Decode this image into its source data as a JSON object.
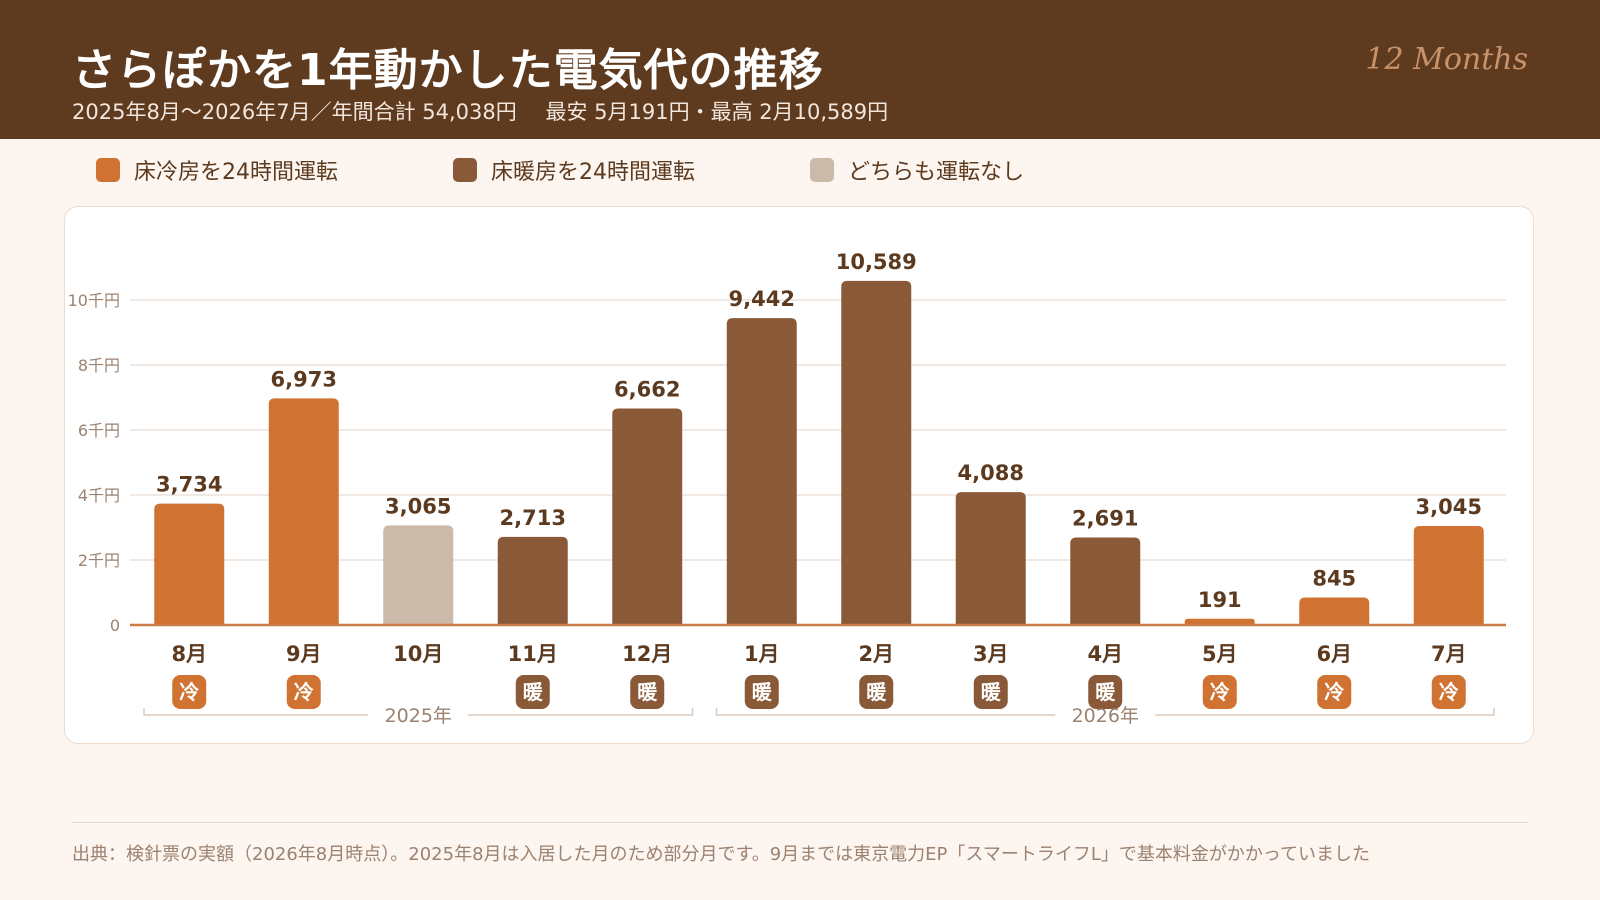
{
  "header": {
    "title": "さらぽかを1年動かした電気代の推移",
    "subtitle_period": "2025年8月〜2026年7月／年間合計  54,038円",
    "subtitle_minmax": "最安  5月191円・最高  2月10,589円",
    "badge": "12 Months"
  },
  "legend": [
    {
      "label": "床冷房を24時間運転",
      "color": "#d07232"
    },
    {
      "label": "床暖房を24時間運転",
      "color": "#8a5a38"
    },
    {
      "label": "どちらも運転なし",
      "color": "#cbb9a9"
    }
  ],
  "colors": {
    "cool": "#d07232",
    "heat": "#8a5a38",
    "off": "#cbb9a9",
    "text": "#5c3a1f",
    "grid": "#ece1d8",
    "tick": "#9b8271"
  },
  "chart_data": {
    "type": "bar",
    "categories": [
      "8月",
      "9月",
      "10月",
      "11月",
      "12月",
      "1月",
      "2月",
      "3月",
      "4月",
      "5月",
      "6月",
      "7月"
    ],
    "values": [
      3734,
      6973,
      3065,
      2713,
      6662,
      9442,
      10589,
      4088,
      2691,
      191,
      845,
      3045
    ],
    "value_labels": [
      "3,734",
      "6,973",
      "3,065",
      "2,713",
      "6,662",
      "9,442",
      "10,589",
      "4,088",
      "2,691",
      "191",
      "845",
      "3,045"
    ],
    "modes": [
      "cool",
      "cool",
      "off",
      "heat",
      "heat",
      "heat",
      "heat",
      "heat",
      "heat",
      "cool",
      "cool",
      "cool"
    ],
    "mode_badges": {
      "cool": "冷",
      "heat": "暖",
      "off": ""
    },
    "ylim": [
      0,
      11000
    ],
    "yticks": [
      0,
      2000,
      4000,
      6000,
      8000,
      10000
    ],
    "ytick_labels": [
      "0",
      "2千円",
      "4千円",
      "6千円",
      "8千円",
      "10千円"
    ],
    "grid": true,
    "year_groups": [
      {
        "label": "2025年",
        "start": 0,
        "end": 4
      },
      {
        "label": "2026年",
        "start": 5,
        "end": 11
      }
    ]
  },
  "footer": {
    "source": "出典：検針票の実額（2026年8月時点）。2025年8月は入居した月のため部分月です。9月までは東京電力EP「スマートライフL」で基本料金がかかっていました"
  }
}
